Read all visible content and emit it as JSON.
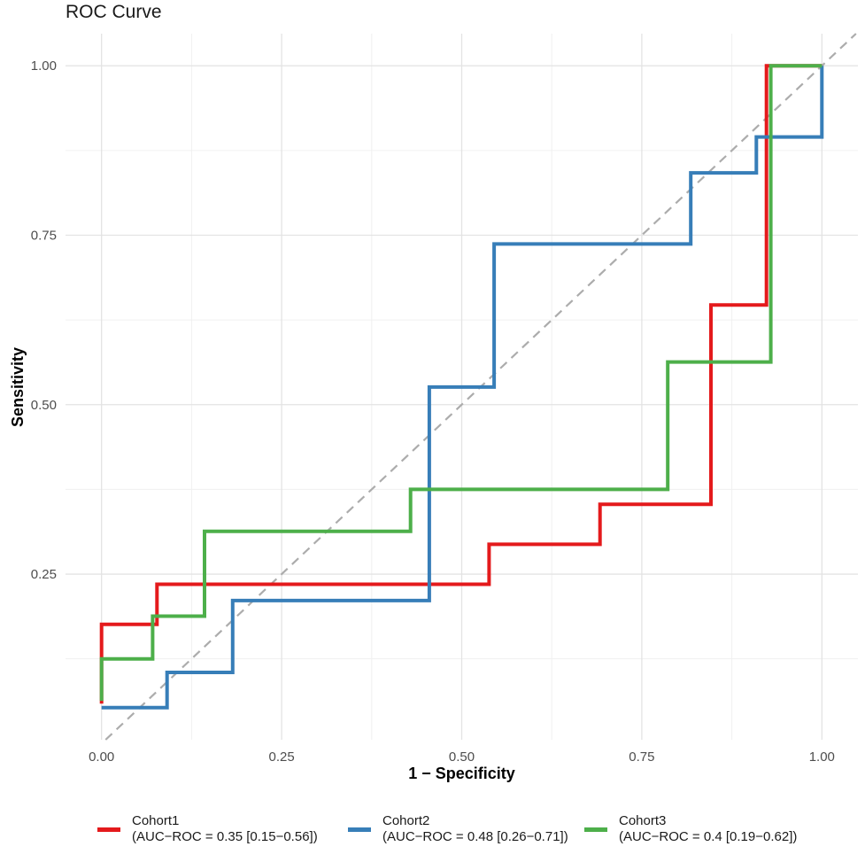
{
  "chart": {
    "title": "ROC Curve",
    "x_axis": {
      "label": "1 − Specificity",
      "tick_labels": [
        "0.00",
        "0.25",
        "0.50",
        "0.75",
        "1.00"
      ],
      "tick_values": [
        0,
        0.25,
        0.5,
        0.75,
        1
      ],
      "minor_tick_values": [
        0.125,
        0.375,
        0.625,
        0.875
      ]
    },
    "y_axis": {
      "label": "Sensitivity",
      "tick_labels": [
        "0.25",
        "0.50",
        "0.75",
        "1.00"
      ],
      "tick_values": [
        0.25,
        0.5,
        0.75,
        1
      ],
      "minor_tick_values": [
        0.125,
        0.375,
        0.625,
        0.875
      ]
    },
    "colors": {
      "grid_major": "#e3e3e3",
      "grid_minor": "#f0f0f0",
      "tick_label": "#4d4d4d",
      "reference_line": "#acacac"
    }
  },
  "chart_data": {
    "type": "line",
    "subtype": "roc-step-curves",
    "title": "ROC Curve",
    "xlabel": "1 − Specificity",
    "ylabel": "Sensitivity",
    "xlim": [
      0,
      1
    ],
    "ylim": [
      0,
      1
    ],
    "grid": "on",
    "legend_position": "bottom",
    "reference_line": {
      "shape": "diagonal",
      "from": [
        0,
        0
      ],
      "to": [
        1,
        1
      ],
      "style": "dashed",
      "color": "#acacac"
    },
    "series": [
      {
        "name": "Cohort1",
        "auc_label": "(AUC−ROC = 0.35 [0.15−0.56])",
        "auc": 0.35,
        "auc_ci": [
          0.15,
          0.56
        ],
        "color": "#e41a1c",
        "points": [
          [
            0,
            0.059
          ],
          [
            0,
            0.176
          ],
          [
            0.077,
            0.176
          ],
          [
            0.077,
            0.235
          ],
          [
            0.538,
            0.235
          ],
          [
            0.538,
            0.294
          ],
          [
            0.692,
            0.294
          ],
          [
            0.692,
            0.353
          ],
          [
            0.846,
            0.353
          ],
          [
            0.846,
            0.647
          ],
          [
            0.923,
            0.647
          ],
          [
            0.923,
            1
          ],
          [
            1,
            1
          ]
        ]
      },
      {
        "name": "Cohort2",
        "auc_label": "(AUC−ROC = 0.48 [0.26−0.71])",
        "auc": 0.48,
        "auc_ci": [
          0.26,
          0.71
        ],
        "color": "#377eb8",
        "points": [
          [
            0,
            0.053
          ],
          [
            0.091,
            0.053
          ],
          [
            0.091,
            0.105
          ],
          [
            0.182,
            0.105
          ],
          [
            0.182,
            0.211
          ],
          [
            0.455,
            0.211
          ],
          [
            0.455,
            0.526
          ],
          [
            0.545,
            0.526
          ],
          [
            0.545,
            0.737
          ],
          [
            0.818,
            0.737
          ],
          [
            0.818,
            0.842
          ],
          [
            0.909,
            0.842
          ],
          [
            0.909,
            0.895
          ],
          [
            1,
            0.895
          ],
          [
            1,
            1
          ]
        ]
      },
      {
        "name": "Cohort3",
        "auc_label": "(AUC−ROC = 0.4 [0.19−0.62])",
        "auc": 0.4,
        "auc_ci": [
          0.19,
          0.62
        ],
        "color": "#4daf4a",
        "points": [
          [
            0,
            0.063
          ],
          [
            0,
            0.125
          ],
          [
            0.071,
            0.125
          ],
          [
            0.071,
            0.188
          ],
          [
            0.143,
            0.188
          ],
          [
            0.143,
            0.313
          ],
          [
            0.429,
            0.313
          ],
          [
            0.429,
            0.375
          ],
          [
            0.786,
            0.375
          ],
          [
            0.786,
            0.563
          ],
          [
            0.929,
            0.563
          ],
          [
            0.929,
            1
          ],
          [
            1,
            1
          ]
        ]
      }
    ]
  }
}
